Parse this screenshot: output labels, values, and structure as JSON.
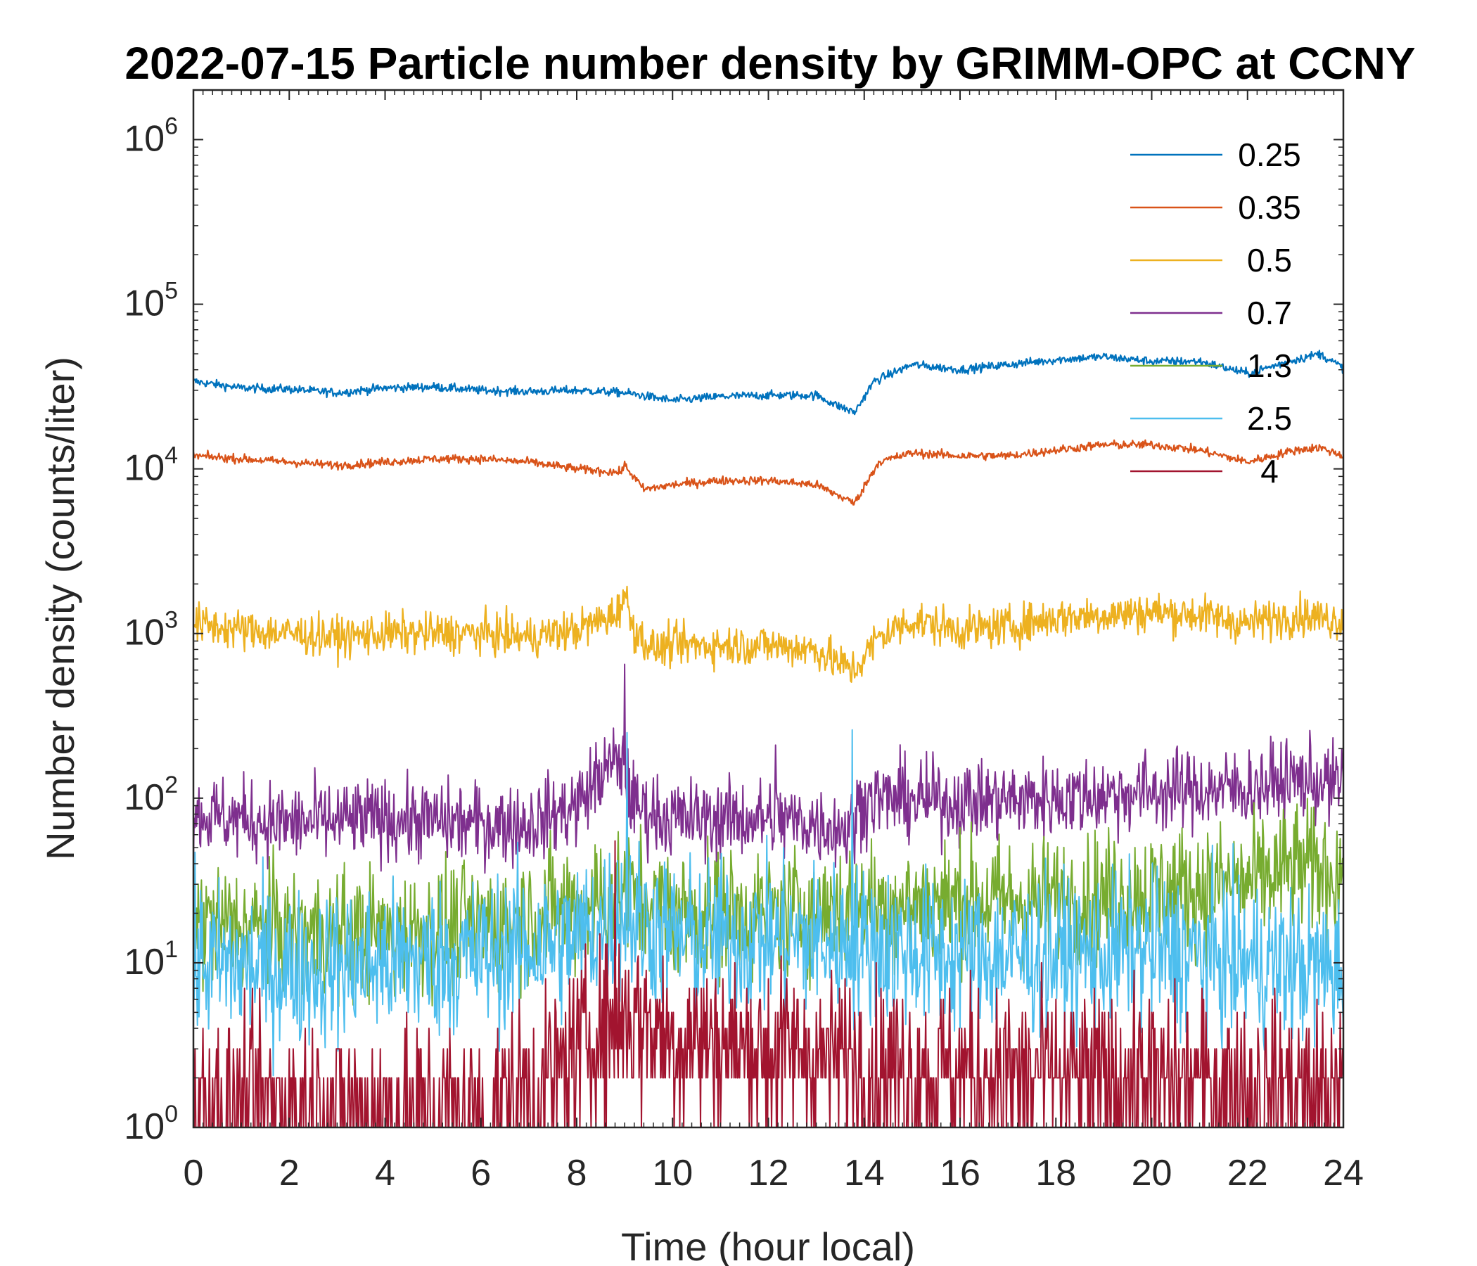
{
  "chart_data": {
    "type": "line",
    "title": "2022-07-15 Particle number density by GRIMM-OPC at CCNY",
    "xlabel": "Time (hour local)",
    "ylabel": "Number density (counts/liter)",
    "xlim": [
      0,
      24
    ],
    "ylim": [
      1,
      2000000
    ],
    "yscale": "log",
    "xticks": [
      0,
      2,
      4,
      6,
      8,
      10,
      12,
      14,
      16,
      18,
      20,
      22,
      24
    ],
    "yticks": [
      {
        "base": "10",
        "exp": "0",
        "value": 1
      },
      {
        "base": "10",
        "exp": "1",
        "value": 10
      },
      {
        "base": "10",
        "exp": "2",
        "value": 100
      },
      {
        "base": "10",
        "exp": "3",
        "value": 1000
      },
      {
        "base": "10",
        "exp": "4",
        "value": 10000
      },
      {
        "base": "10",
        "exp": "5",
        "value": 100000
      },
      {
        "base": "10",
        "exp": "6",
        "value": 1000000
      }
    ],
    "legend_position": "top-right",
    "series": [
      {
        "name": "0.25",
        "color": "#0072BD",
        "x": [
          0,
          1,
          2,
          3,
          4,
          5,
          6,
          7,
          8,
          9,
          10,
          11,
          12,
          13,
          13.4,
          13.8,
          14.2,
          15,
          16,
          17,
          18,
          19,
          20,
          21,
          22,
          23,
          23.5,
          24
        ],
        "y": [
          34000,
          31000,
          30500,
          29000,
          31000,
          31500,
          30000,
          29500,
          30000,
          29000,
          26000,
          27500,
          28000,
          28000,
          24500,
          22000,
          34000,
          43000,
          40000,
          43000,
          46000,
          48000,
          45000,
          45000,
          38000,
          46000,
          50000,
          41000
        ]
      },
      {
        "name": "0.35",
        "color": "#D95319",
        "x": [
          0,
          1,
          2,
          3,
          4,
          5,
          6,
          7,
          8,
          8.9,
          9,
          9.4,
          10,
          11,
          12,
          13,
          13.5,
          13.8,
          14.3,
          15,
          16,
          17,
          18,
          19,
          20,
          21,
          22,
          23,
          23.5,
          24
        ],
        "y": [
          12000,
          11500,
          11000,
          10500,
          11000,
          11500,
          11500,
          11000,
          10000,
          9500,
          10500,
          7500,
          8000,
          8500,
          8500,
          8000,
          6800,
          6200,
          11000,
          12500,
          12000,
          12000,
          13000,
          14000,
          14000,
          13000,
          11000,
          13000,
          13500,
          12000
        ]
      },
      {
        "name": "0.5",
        "color": "#EDB120",
        "x": [
          0,
          1,
          2,
          3,
          4,
          5,
          6,
          7,
          8,
          8.8,
          9,
          9.2,
          9.6,
          10,
          11,
          12,
          13,
          13.5,
          13.8,
          14.3,
          15,
          16,
          17,
          18,
          19,
          20,
          21,
          22,
          23,
          24
        ],
        "y": [
          1150,
          1050,
          1000,
          950,
          1000,
          1000,
          1000,
          950,
          1050,
          1300,
          1700,
          1050,
          800,
          850,
          850,
          850,
          800,
          650,
          600,
          950,
          1200,
          1050,
          1100,
          1250,
          1300,
          1350,
          1300,
          1150,
          1300,
          1200
        ],
        "noise": 0.14
      },
      {
        "name": "0.7",
        "color": "#7E2F8E",
        "x": [
          0,
          2,
          4,
          6,
          7,
          8,
          8.5,
          8.9,
          9.2,
          10,
          11,
          12,
          13,
          13.7,
          14,
          16,
          18,
          20,
          22,
          23,
          24
        ],
        "y": [
          80,
          70,
          75,
          70,
          70,
          90,
          140,
          170,
          90,
          75,
          75,
          75,
          70,
          65,
          100,
          95,
          100,
          110,
          115,
          130,
          120
        ],
        "noise": 0.28
      },
      {
        "name": "1.3",
        "color": "#77AC30",
        "x": [
          0,
          2,
          4,
          6,
          8,
          9,
          10,
          12,
          14,
          16,
          18,
          20,
          22,
          23,
          24
        ],
        "y": [
          18,
          15,
          15,
          17,
          22,
          28,
          20,
          20,
          22,
          24,
          24,
          27,
          30,
          38,
          35
        ],
        "noise": 0.45
      },
      {
        "name": "2.5",
        "color": "#4DBEEE",
        "x": [
          0,
          2,
          4,
          6,
          8,
          9,
          10,
          12,
          14,
          16,
          18,
          20,
          22,
          24
        ],
        "y": [
          10,
          9,
          10,
          11,
          14,
          20,
          14,
          14,
          13,
          11,
          11,
          12,
          10,
          9
        ],
        "noise": 0.55
      },
      {
        "name": "4",
        "color": "#A2142F",
        "x": [
          0,
          2,
          4,
          6,
          7.5,
          8,
          9,
          10,
          12,
          14,
          16,
          18,
          20,
          22,
          24
        ],
        "y": [
          1.4,
          1.4,
          1.3,
          1.3,
          2,
          3,
          5,
          3.5,
          3,
          2.5,
          2.2,
          2,
          2,
          1.8,
          1.6
        ],
        "noise": 0.6
      }
    ],
    "spikes": [
      {
        "series": "0.7",
        "x": 9.0,
        "y": 650
      },
      {
        "series": "0.7",
        "x": 12.15,
        "y": 210
      },
      {
        "series": "2.5",
        "x": 13.75,
        "y": 260
      },
      {
        "series": "2.5",
        "x": 9.05,
        "y": 250
      },
      {
        "series": "4",
        "x": 8.8,
        "y": 55
      }
    ]
  }
}
